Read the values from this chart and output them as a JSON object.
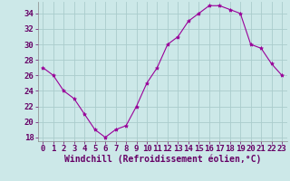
{
  "x": [
    0,
    1,
    2,
    3,
    4,
    5,
    6,
    7,
    8,
    9,
    10,
    11,
    12,
    13,
    14,
    15,
    16,
    17,
    18,
    19,
    20,
    21,
    22,
    23
  ],
  "y": [
    27,
    26,
    24,
    23,
    21,
    19,
    18,
    19,
    19.5,
    22,
    25,
    27,
    30,
    31,
    33,
    34,
    35,
    35,
    34.5,
    34,
    30,
    29.5,
    27.5,
    26
  ],
  "line_color": "#990099",
  "marker": "*",
  "marker_size": 3,
  "bg_color": "#cce8e8",
  "grid_color": "#aacccc",
  "xlabel": "Windchill (Refroidissement éolien,°C)",
  "xlabel_color": "#660066",
  "xlabel_fontsize": 7,
  "tick_color": "#660066",
  "tick_fontsize": 6.5,
  "yticks": [
    18,
    20,
    22,
    24,
    26,
    28,
    30,
    32,
    34
  ],
  "ymin": 17.5,
  "ymax": 35.5,
  "xmin": -0.5,
  "xmax": 23.5
}
